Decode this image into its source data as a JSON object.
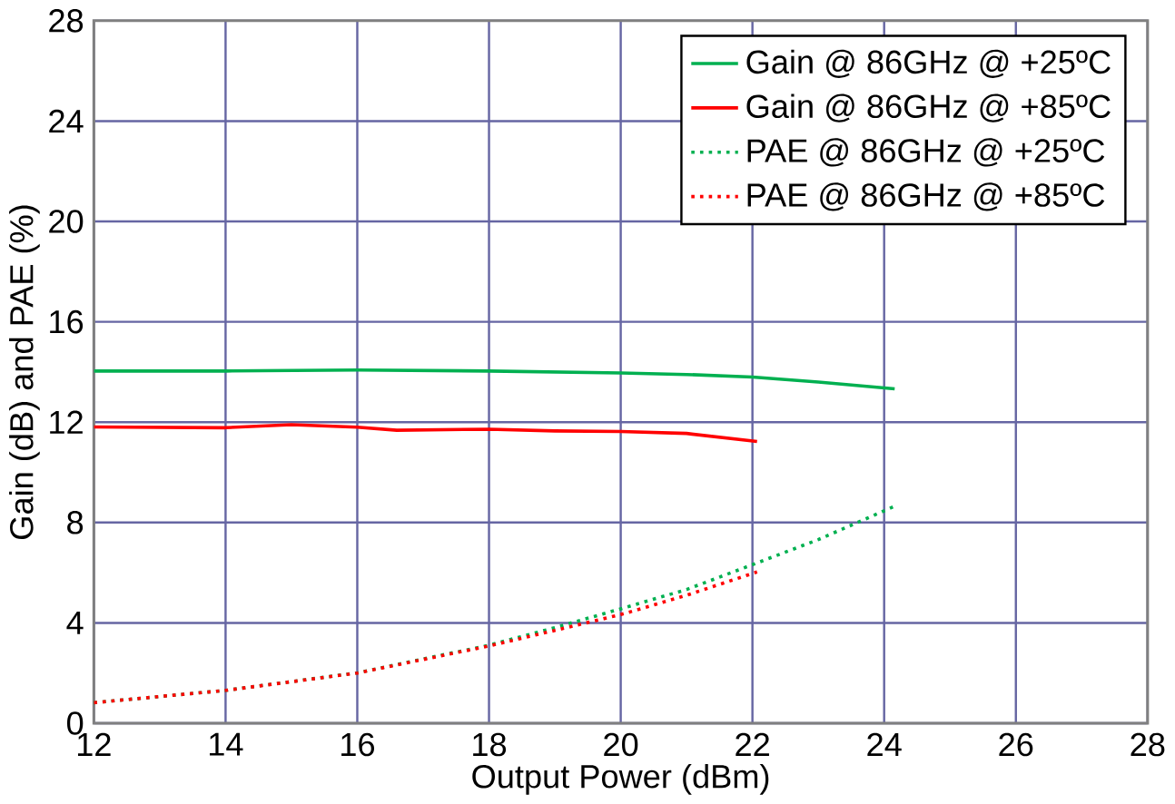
{
  "chart_data": {
    "type": "line",
    "xlabel": "Output Power (dBm)",
    "ylabel": "Gain (dB) and PAE (%)",
    "xlim": [
      12,
      28
    ],
    "ylim": [
      0,
      28
    ],
    "xticks": [
      12,
      14,
      16,
      18,
      20,
      22,
      24,
      26,
      28
    ],
    "yticks": [
      0,
      4,
      8,
      12,
      16,
      20,
      24,
      28
    ],
    "grid": true,
    "legend": "top right",
    "marker": "none",
    "series": [
      {
        "name": "Gain @ 86GHz @ +25ºC",
        "color": "#00b050",
        "line_style": "solid",
        "x": [
          12,
          14,
          16,
          18,
          20,
          21,
          22,
          23,
          24.16
        ],
        "values": [
          14.04,
          14.04,
          14.08,
          14.04,
          13.96,
          13.9,
          13.8,
          13.6,
          13.33
        ]
      },
      {
        "name": "Gain @ 86GHz @ +85ºC",
        "color": "#ff0000",
        "line_style": "solid",
        "x": [
          12,
          14,
          15,
          16,
          16.6,
          18,
          19,
          20,
          21,
          22.07
        ],
        "values": [
          11.81,
          11.78,
          11.9,
          11.8,
          11.68,
          11.72,
          11.65,
          11.63,
          11.55,
          11.23
        ]
      },
      {
        "name": "PAE @ 86GHz @ +25ºC",
        "color": "#00b050",
        "line_style": "dotted",
        "x": [
          12,
          14,
          16,
          18,
          19,
          20,
          21,
          22,
          23,
          24.16
        ],
        "values": [
          0.82,
          1.31,
          2.01,
          3.11,
          3.81,
          4.56,
          5.33,
          6.32,
          7.32,
          8.65
        ]
      },
      {
        "name": "PAE @ 86GHz @ +85ºC",
        "color": "#ff0000",
        "line_style": "dotted",
        "x": [
          12,
          14,
          16,
          18,
          19,
          20,
          21,
          22.07
        ],
        "values": [
          0.82,
          1.31,
          2.0,
          3.08,
          3.7,
          4.33,
          5.1,
          6.03
        ]
      }
    ]
  }
}
